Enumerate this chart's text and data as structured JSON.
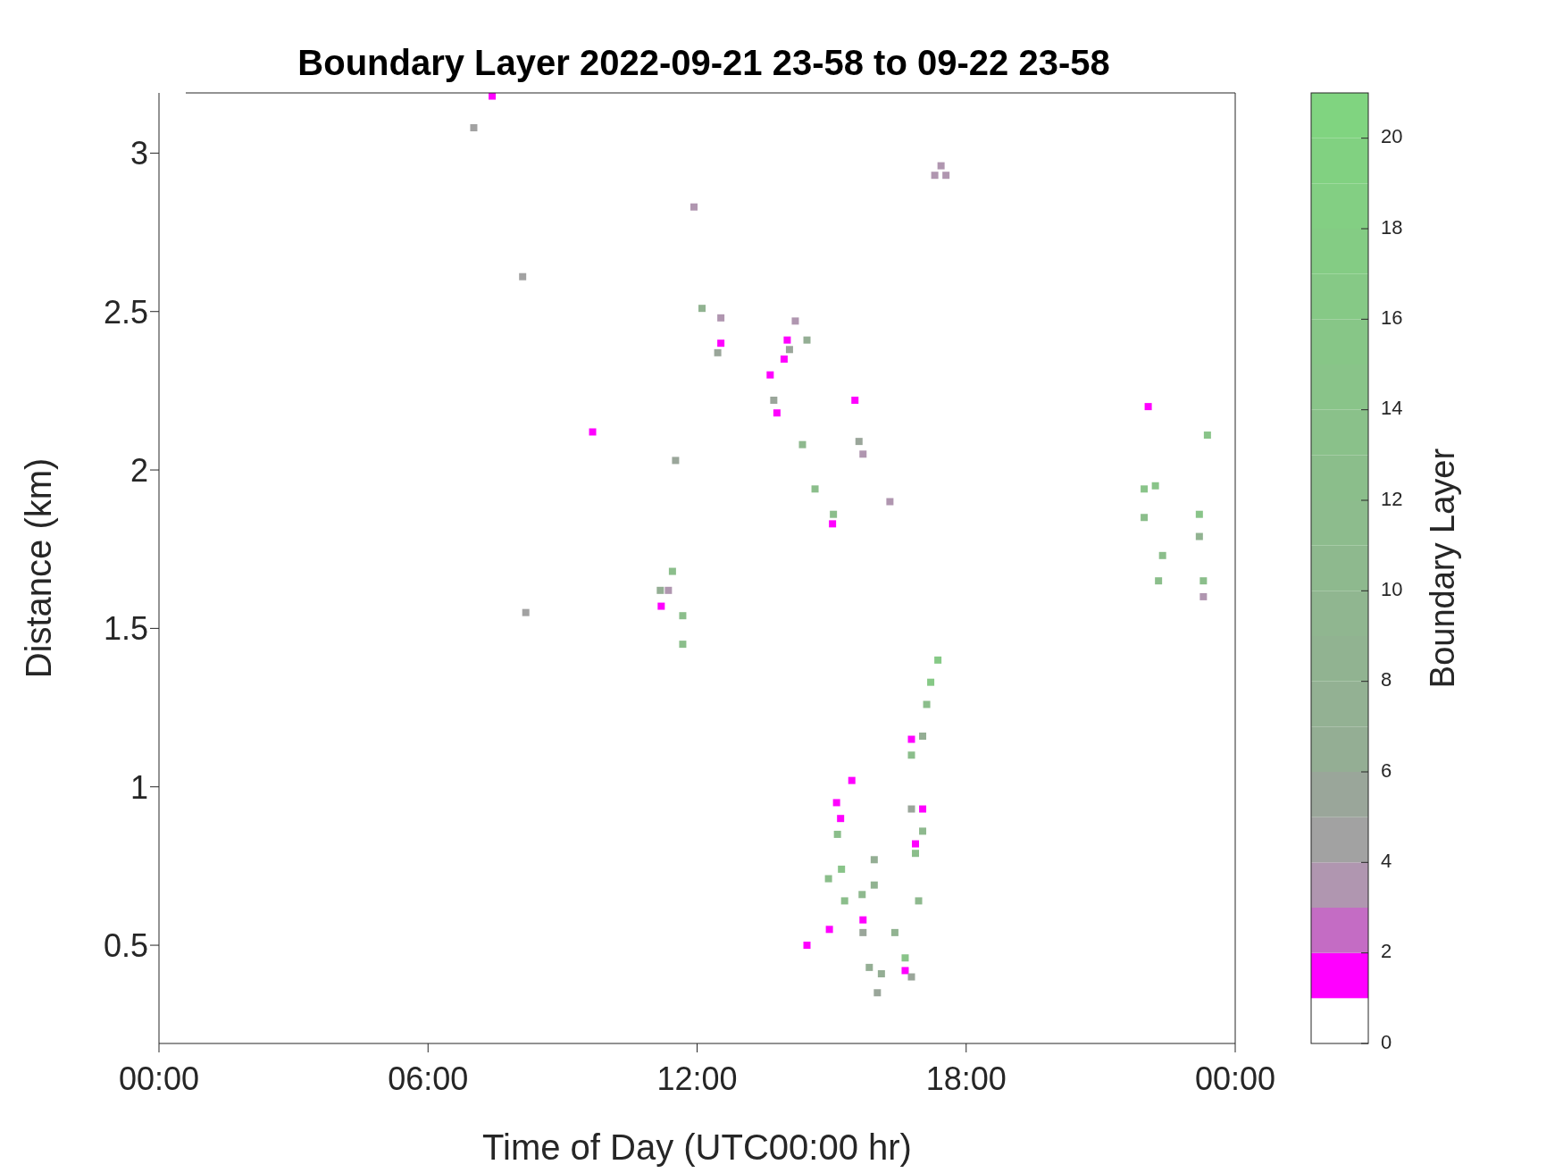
{
  "chart_data": {
    "type": "scatter",
    "title": "Boundary Layer 2022-09-21 23-58 to 09-22 23-58",
    "xlabel": "Time of Day (UTC00:00 hr)",
    "ylabel": "Distance (km)",
    "clabel": "Boundary Layer",
    "xlim": [
      0,
      24
    ],
    "xticks": [
      {
        "value": 0,
        "label": "00:00"
      },
      {
        "value": 6,
        "label": "06:00"
      },
      {
        "value": 12,
        "label": "12:00"
      },
      {
        "value": 18,
        "label": "18:00"
      },
      {
        "value": 24,
        "label": "00:00"
      }
    ],
    "ylim": [
      0.19,
      3.19
    ],
    "yticks": [
      0.5,
      1,
      1.5,
      2,
      2.5,
      3
    ],
    "clim": [
      0,
      21
    ],
    "cticks": [
      0,
      2,
      4,
      6,
      8,
      10,
      12,
      14,
      16,
      18,
      20
    ],
    "marker": "square",
    "x": [
      7.43,
      7.02,
      11.93,
      8.11,
      12.11,
      12.53,
      12.53,
      12.46,
      14.19,
      14.45,
      14.01,
      14.06,
      13.94,
      13.63,
      13.71,
      13.78,
      15.52,
      9.67,
      11.52,
      14.35,
      15.61,
      15.7,
      14.63,
      16.3,
      15.04,
      15.02,
      22.06,
      23.38,
      21.97,
      22.22,
      21.97,
      23.2,
      23.2,
      22.38,
      22.29,
      23.29,
      23.29,
      11.45,
      11.18,
      11.36,
      11.2,
      11.68,
      11.68,
      8.18,
      17.37,
      17.21,
      17.12,
      17.03,
      16.78,
      16.78,
      15.45,
      15.11,
      15.2,
      15.13,
      15.22,
      15.29,
      14.93,
      16.78,
      17.03,
      16.87,
      16.87,
      17.03,
      15.95,
      15.95,
      15.68,
      16.94,
      14.95,
      15.7,
      15.7,
      14.45,
      16.41,
      16.64,
      16.64,
      15.84,
      16.11,
      16.02,
      16.78,
      17.3,
      17.44,
      17.55
    ],
    "values": [
      3.18,
      3.08,
      2.83,
      2.61,
      2.51,
      2.48,
      2.4,
      2.37,
      2.47,
      2.41,
      2.41,
      2.38,
      2.35,
      2.3,
      2.22,
      2.18,
      2.22,
      2.12,
      2.03,
      2.08,
      2.09,
      2.05,
      1.94,
      1.9,
      1.86,
      1.83,
      2.2,
      2.11,
      1.94,
      1.95,
      1.85,
      1.86,
      1.79,
      1.73,
      1.65,
      1.65,
      1.6,
      1.68,
      1.62,
      1.62,
      1.57,
      1.54,
      1.45,
      1.55,
      1.4,
      1.33,
      1.26,
      1.16,
      1.15,
      1.1,
      1.02,
      0.95,
      0.9,
      0.85,
      0.74,
      0.64,
      0.71,
      0.93,
      0.93,
      0.82,
      0.79,
      0.86,
      0.77,
      0.69,
      0.66,
      0.64,
      0.55,
      0.58,
      0.54,
      0.5,
      0.54,
      0.46,
      0.42,
      0.43,
      0.41,
      0.35,
      0.4,
      2.93,
      2.96,
      2.93
    ],
    "cvalues": [
      1,
      4,
      3,
      4,
      8,
      3,
      1,
      5,
      3,
      6,
      1,
      5,
      1,
      1,
      5,
      1,
      1,
      1,
      5,
      10,
      5,
      3,
      12,
      3,
      12,
      1,
      1,
      14,
      14,
      14,
      12,
      14,
      8,
      12,
      12,
      12,
      3,
      12,
      6,
      3,
      1,
      12,
      12,
      4,
      16,
      16,
      12,
      6,
      1,
      12,
      1,
      1,
      1,
      12,
      14,
      12,
      12,
      5,
      1,
      1,
      12,
      10,
      6,
      8,
      10,
      10,
      1,
      1,
      5,
      1,
      8,
      14,
      1,
      6,
      6,
      5,
      5,
      3,
      3,
      3
    ]
  }
}
